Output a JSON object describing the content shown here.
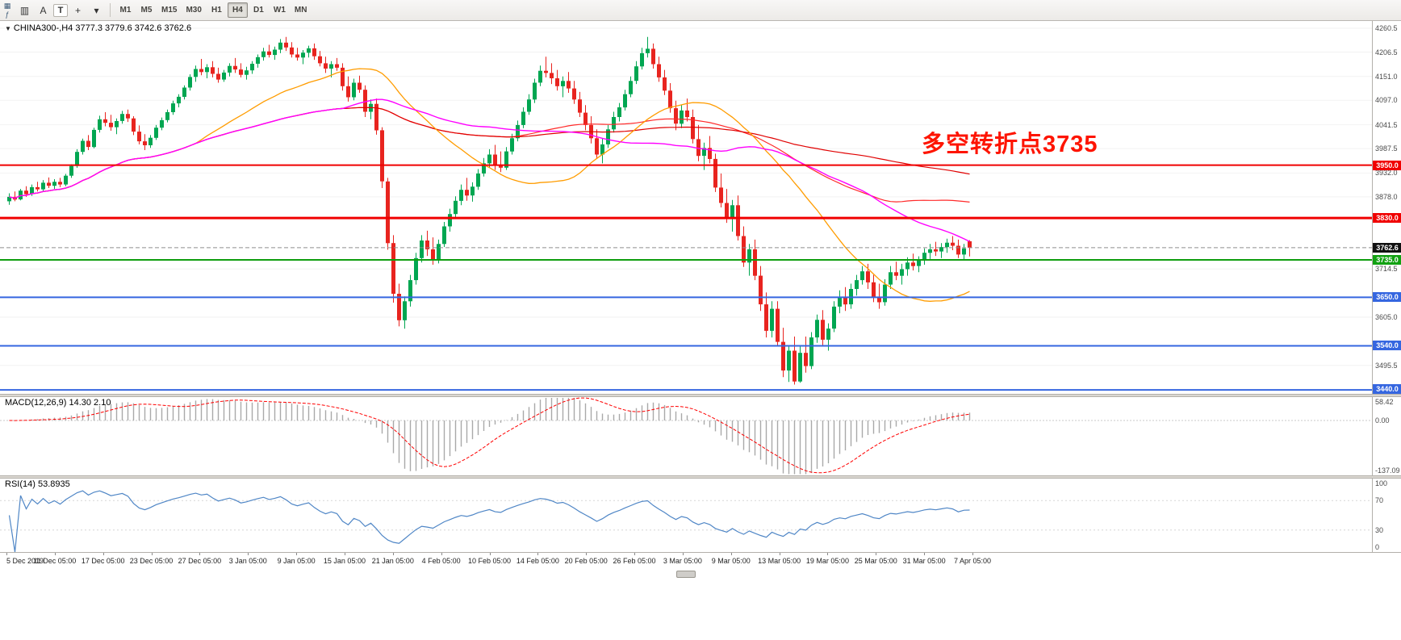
{
  "toolbar": {
    "corner_icons": [
      {
        "name": "chart-grid-icon",
        "glyph": "▦"
      },
      {
        "name": "function-icon",
        "glyph": "ƒ"
      }
    ],
    "icons": [
      {
        "name": "chart-window-icon",
        "glyph": "▥"
      },
      {
        "name": "cursor-tool-icon",
        "glyph": "A"
      },
      {
        "name": "text-tool-icon",
        "glyph": "T"
      },
      {
        "name": "crosshair-tool-icon",
        "glyph": "+"
      },
      {
        "name": "drawing-tools-dropdown-icon",
        "glyph": "▾"
      }
    ],
    "timeframes": [
      "M1",
      "M5",
      "M15",
      "M30",
      "H1",
      "H4",
      "D1",
      "W1",
      "MN"
    ],
    "active_timeframe": "H4"
  },
  "chart_data": {
    "type": "candlestick",
    "symbol": "CHINA300-",
    "timeframe": "H4",
    "title_icon": "▼",
    "title": "CHINA300-,H4 3777.3 3779.6 3742.6 3762.6",
    "ohlc": {
      "open": 3777.3,
      "high": 3779.6,
      "low": 3742.6,
      "close": 3762.6
    },
    "annotation": {
      "text": "多空转折点3735",
      "color": "#fe1400"
    },
    "colors": {
      "up": "#00a651",
      "down": "#e8241f"
    },
    "ylim": [
      3431,
      4277
    ],
    "price_ticks": [
      4260.5,
      4206.5,
      4151.0,
      4097.0,
      4041.5,
      3987.5,
      3932.0,
      3878.0,
      3714.5,
      3605.0,
      3495.5
    ],
    "price_badges": [
      {
        "label": "3950.0",
        "price": 3950.0,
        "bg": "#f00000"
      },
      {
        "label": "3830.0",
        "price": 3830.0,
        "bg": "#f00000"
      },
      {
        "label": "3762.6",
        "price": 3762.6,
        "bg": "#111111"
      },
      {
        "label": "3735.0",
        "price": 3735.0,
        "bg": "#12a112"
      },
      {
        "label": "3650.0",
        "price": 3650.0,
        "bg": "#3566e0"
      },
      {
        "label": "3540.0",
        "price": 3540.0,
        "bg": "#3566e0"
      },
      {
        "label": "3440.0",
        "price": 3440.0,
        "bg": "#3566e0"
      }
    ],
    "hlines": [
      {
        "label": "3950.0",
        "price": 3950.0,
        "color": "#f00000",
        "width": 2
      },
      {
        "label": "3830.0",
        "price": 3830.0,
        "color": "#f00000",
        "width": 3
      },
      {
        "label": "3735.0",
        "price": 3735.0,
        "color": "#0f9d0f",
        "width": 2
      },
      {
        "label": "3650.0",
        "price": 3650.0,
        "color": "#3566e0",
        "width": 2
      },
      {
        "label": "3540.0",
        "price": 3540.0,
        "color": "#3566e0",
        "width": 2
      },
      {
        "label": "3440.0",
        "price": 3440.0,
        "color": "#3566e0",
        "width": 2
      }
    ],
    "current_price": {
      "label": "3762.6",
      "value": 3762.6
    },
    "moving_averages": [
      {
        "name": "slow-red",
        "period": 90,
        "color": "#ff2a2a",
        "width": 1.2
      },
      {
        "name": "slowest-red",
        "period": 140,
        "color": "#e00000",
        "width": 1.2
      },
      {
        "name": "fast-orange",
        "period": 34,
        "color": "#ff9c00",
        "width": 1.3
      },
      {
        "name": "mid-magenta",
        "period": 60,
        "color": "#ff00ff",
        "width": 1.4
      }
    ],
    "x_labels": [
      "5 Dec 2019",
      "11 Dec 05:00",
      "17 Dec 05:00",
      "23 Dec 05:00",
      "27 Dec 05:00",
      "3 Jan 05:00",
      "9 Jan 05:00",
      "15 Jan 05:00",
      "21 Jan 05:00",
      "4 Feb 05:00",
      "10 Feb 05:00",
      "14 Feb 05:00",
      "20 Feb 05:00",
      "26 Feb 05:00",
      "3 Mar 05:00",
      "9 Mar 05:00",
      "13 Mar 05:00",
      "19 Mar 05:00",
      "25 Mar 05:00",
      "31 Mar 05:00",
      "7 Apr 05:00"
    ],
    "candles": [
      [
        3868,
        3886,
        3860,
        3878
      ],
      [
        3878,
        3890,
        3868,
        3872
      ],
      [
        3872,
        3896,
        3870,
        3892
      ],
      [
        3892,
        3902,
        3878,
        3884
      ],
      [
        3884,
        3906,
        3880,
        3900
      ],
      [
        3900,
        3912,
        3890,
        3895
      ],
      [
        3895,
        3916,
        3890,
        3910
      ],
      [
        3910,
        3922,
        3898,
        3903
      ],
      [
        3903,
        3918,
        3896,
        3912
      ],
      [
        3912,
        3921,
        3900,
        3906
      ],
      [
        3906,
        3930,
        3902,
        3926
      ],
      [
        3926,
        3952,
        3921,
        3948
      ],
      [
        3948,
        3986,
        3944,
        3980
      ],
      [
        3980,
        4010,
        3974,
        4005
      ],
      [
        4005,
        4018,
        3984,
        3991
      ],
      [
        3991,
        4035,
        3988,
        4030
      ],
      [
        4030,
        4062,
        4024,
        4054
      ],
      [
        4054,
        4070,
        4038,
        4046
      ],
      [
        4046,
        4064,
        4028,
        4036
      ],
      [
        4036,
        4056,
        4020,
        4050
      ],
      [
        4050,
        4073,
        4044,
        4066
      ],
      [
        4066,
        4076,
        4048,
        4056
      ],
      [
        4056,
        4061,
        4018,
        4026
      ],
      [
        4026,
        4040,
        3997,
        4004
      ],
      [
        4004,
        4020,
        3984,
        3995
      ],
      [
        3995,
        4018,
        3989,
        4012
      ],
      [
        4012,
        4041,
        4007,
        4035
      ],
      [
        4035,
        4058,
        4029,
        4052
      ],
      [
        4052,
        4076,
        4047,
        4070
      ],
      [
        4070,
        4096,
        4064,
        4090
      ],
      [
        4090,
        4111,
        4081,
        4105
      ],
      [
        4105,
        4131,
        4099,
        4126
      ],
      [
        4126,
        4156,
        4119,
        4150
      ],
      [
        4150,
        4176,
        4139,
        4168
      ],
      [
        4168,
        4191,
        4154,
        4161
      ],
      [
        4161,
        4179,
        4147,
        4172
      ],
      [
        4172,
        4186,
        4149,
        4157
      ],
      [
        4157,
        4171,
        4137,
        4144
      ],
      [
        4144,
        4166,
        4139,
        4160
      ],
      [
        4160,
        4181,
        4151,
        4175
      ],
      [
        4175,
        4193,
        4159,
        4167
      ],
      [
        4167,
        4181,
        4149,
        4155
      ],
      [
        4155,
        4173,
        4144,
        4165
      ],
      [
        4165,
        4186,
        4157,
        4180
      ],
      [
        4180,
        4201,
        4171,
        4195
      ],
      [
        4195,
        4216,
        4187,
        4208
      ],
      [
        4208,
        4223,
        4194,
        4200
      ],
      [
        4200,
        4219,
        4189,
        4212
      ],
      [
        4212,
        4236,
        4204,
        4228
      ],
      [
        4228,
        4241,
        4209,
        4217
      ],
      [
        4217,
        4229,
        4194,
        4201
      ],
      [
        4201,
        4216,
        4187,
        4194
      ],
      [
        4194,
        4211,
        4179,
        4205
      ],
      [
        4205,
        4221,
        4194,
        4215
      ],
      [
        4215,
        4226,
        4189,
        4197
      ],
      [
        4197,
        4209,
        4174,
        4181
      ],
      [
        4181,
        4196,
        4159,
        4169
      ],
      [
        4169,
        4186,
        4149,
        4179
      ],
      [
        4179,
        4193,
        4164,
        4171
      ],
      [
        4171,
        4181,
        4119,
        4129
      ],
      [
        4129,
        4151,
        4094,
        4104
      ],
      [
        4104,
        4146,
        4097,
        4137
      ],
      [
        4137,
        4153,
        4114,
        4121
      ],
      [
        4121,
        4131,
        4059,
        4071
      ],
      [
        4071,
        4099,
        4054,
        4089
      ],
      [
        4089,
        4101,
        4019,
        4029
      ],
      [
        4029,
        4036,
        3898,
        3913
      ],
      [
        3913,
        3921,
        3758,
        3773
      ],
      [
        3773,
        3791,
        3638,
        3658
      ],
      [
        3658,
        3681,
        3584,
        3598
      ],
      [
        3598,
        3652,
        3579,
        3641
      ],
      [
        3641,
        3701,
        3629,
        3689
      ],
      [
        3689,
        3751,
        3679,
        3739
      ],
      [
        3739,
        3791,
        3729,
        3779
      ],
      [
        3779,
        3801,
        3744,
        3759
      ],
      [
        3759,
        3786,
        3724,
        3734
      ],
      [
        3734,
        3781,
        3727,
        3771
      ],
      [
        3771,
        3821,
        3764,
        3811
      ],
      [
        3811,
        3851,
        3799,
        3839
      ],
      [
        3839,
        3879,
        3831,
        3869
      ],
      [
        3869,
        3906,
        3859,
        3894
      ],
      [
        3894,
        3921,
        3869,
        3881
      ],
      [
        3881,
        3911,
        3867,
        3901
      ],
      [
        3901,
        3941,
        3894,
        3931
      ],
      [
        3931,
        3966,
        3924,
        3954
      ],
      [
        3954,
        3986,
        3944,
        3974
      ],
      [
        3974,
        3996,
        3939,
        3951
      ],
      [
        3951,
        3981,
        3934,
        3944
      ],
      [
        3944,
        3991,
        3939,
        3981
      ],
      [
        3981,
        4021,
        3974,
        4011
      ],
      [
        4011,
        4051,
        4004,
        4041
      ],
      [
        4041,
        4081,
        4034,
        4071
      ],
      [
        4071,
        4111,
        4064,
        4099
      ],
      [
        4099,
        4146,
        4091,
        4137
      ],
      [
        4137,
        4176,
        4129,
        4164
      ],
      [
        4164,
        4196,
        4149,
        4159
      ],
      [
        4159,
        4181,
        4134,
        4147
      ],
      [
        4147,
        4166,
        4119,
        4129
      ],
      [
        4129,
        4151,
        4104,
        4141
      ],
      [
        4141,
        4161,
        4114,
        4124
      ],
      [
        4124,
        4141,
        4089,
        4099
      ],
      [
        4099,
        4116,
        4059,
        4069
      ],
      [
        4069,
        4086,
        4029,
        4041
      ],
      [
        4041,
        4061,
        3999,
        4011
      ],
      [
        4011,
        4031,
        3964,
        3974
      ],
      [
        3974,
        4011,
        3954,
        3997
      ],
      [
        3997,
        4041,
        3989,
        4031
      ],
      [
        4031,
        4071,
        4024,
        4059
      ],
      [
        4059,
        4091,
        4049,
        4081
      ],
      [
        4081,
        4121,
        4074,
        4111
      ],
      [
        4111,
        4151,
        4104,
        4141
      ],
      [
        4141,
        4186,
        4134,
        4174
      ],
      [
        4174,
        4216,
        4167,
        4204
      ],
      [
        4204,
        4241,
        4194,
        4214
      ],
      [
        4214,
        4226,
        4169,
        4179
      ],
      [
        4179,
        4196,
        4139,
        4149
      ],
      [
        4149,
        4166,
        4109,
        4119
      ],
      [
        4119,
        4136,
        4069,
        4079
      ],
      [
        4079,
        4096,
        4029,
        4044
      ],
      [
        4044,
        4086,
        4034,
        4074
      ],
      [
        4074,
        4101,
        4049,
        4059
      ],
      [
        4059,
        4076,
        3999,
        4009
      ],
      [
        4009,
        4041,
        3959,
        3971
      ],
      [
        3971,
        4001,
        3939,
        3989
      ],
      [
        3989,
        4016,
        3954,
        3964
      ],
      [
        3964,
        3976,
        3889,
        3899
      ],
      [
        3899,
        3931,
        3854,
        3864
      ],
      [
        3864,
        3896,
        3819,
        3829
      ],
      [
        3829,
        3871,
        3799,
        3859
      ],
      [
        3859,
        3881,
        3779,
        3789
      ],
      [
        3789,
        3811,
        3719,
        3729
      ],
      [
        3729,
        3771,
        3699,
        3759
      ],
      [
        3759,
        3781,
        3689,
        3699
      ],
      [
        3699,
        3721,
        3619,
        3634
      ],
      [
        3634,
        3661,
        3559,
        3574
      ],
      [
        3574,
        3641,
        3559,
        3624
      ],
      [
        3624,
        3641,
        3539,
        3549
      ],
      [
        3549,
        3581,
        3469,
        3484
      ],
      [
        3484,
        3541,
        3458,
        3529
      ],
      [
        3529,
        3561,
        3452,
        3459
      ],
      [
        3459,
        3541,
        3456,
        3524
      ],
      [
        3524,
        3561,
        3479,
        3494
      ],
      [
        3494,
        3571,
        3487,
        3559
      ],
      [
        3559,
        3611,
        3547,
        3599
      ],
      [
        3599,
        3621,
        3539,
        3554
      ],
      [
        3554,
        3591,
        3529,
        3579
      ],
      [
        3579,
        3641,
        3571,
        3629
      ],
      [
        3629,
        3666,
        3614,
        3649
      ],
      [
        3649,
        3673,
        3619,
        3634
      ],
      [
        3634,
        3681,
        3624,
        3669
      ],
      [
        3669,
        3701,
        3654,
        3689
      ],
      [
        3689,
        3721,
        3679,
        3709
      ],
      [
        3709,
        3726,
        3669,
        3684
      ],
      [
        3684,
        3701,
        3639,
        3651
      ],
      [
        3651,
        3681,
        3624,
        3639
      ],
      [
        3639,
        3691,
        3631,
        3679
      ],
      [
        3679,
        3721,
        3669,
        3707
      ],
      [
        3707,
        3731,
        3689,
        3699
      ],
      [
        3699,
        3726,
        3679,
        3714
      ],
      [
        3714,
        3741,
        3699,
        3729
      ],
      [
        3729,
        3749,
        3711,
        3721
      ],
      [
        3721,
        3743,
        3707,
        3734
      ],
      [
        3734,
        3761,
        3724,
        3751
      ],
      [
        3751,
        3771,
        3737,
        3759
      ],
      [
        3759,
        3776,
        3744,
        3754
      ],
      [
        3754,
        3773,
        3739,
        3764
      ],
      [
        3764,
        3783,
        3751,
        3774
      ],
      [
        3774,
        3789,
        3757,
        3767
      ],
      [
        3767,
        3781,
        3739,
        3747
      ],
      [
        3747,
        3771,
        3734,
        3761
      ],
      [
        3777.3,
        3779.6,
        3742.6,
        3762.6
      ]
    ],
    "macd": {
      "label": "MACD(12,26,9) 14.30 2.10",
      "fast": 12,
      "slow": 26,
      "signal": 9,
      "main_value": 14.3,
      "signal_value": 2.1,
      "ylim": [
        -137.09,
        58.42
      ],
      "ticks": [
        {
          "label": "58.42",
          "value": 58.42
        },
        {
          "label": "0.00",
          "value": 0
        },
        {
          "label": "-137.09",
          "value": -137.09
        }
      ],
      "hist_color": "#a9a9a9",
      "signal_color": "#ff0000"
    },
    "rsi": {
      "label": "RSI(14) 53.8935",
      "period": 14,
      "value": 53.8935,
      "ylim": [
        0,
        100
      ],
      "ticks": [
        {
          "label": "100",
          "value": 100
        },
        {
          "label": "70",
          "value": 70
        },
        {
          "label": "30",
          "value": 30
        },
        {
          "label": "0",
          "value": 0
        }
      ],
      "levels": [
        70,
        30
      ],
      "line_color": "#4f86c6"
    }
  }
}
